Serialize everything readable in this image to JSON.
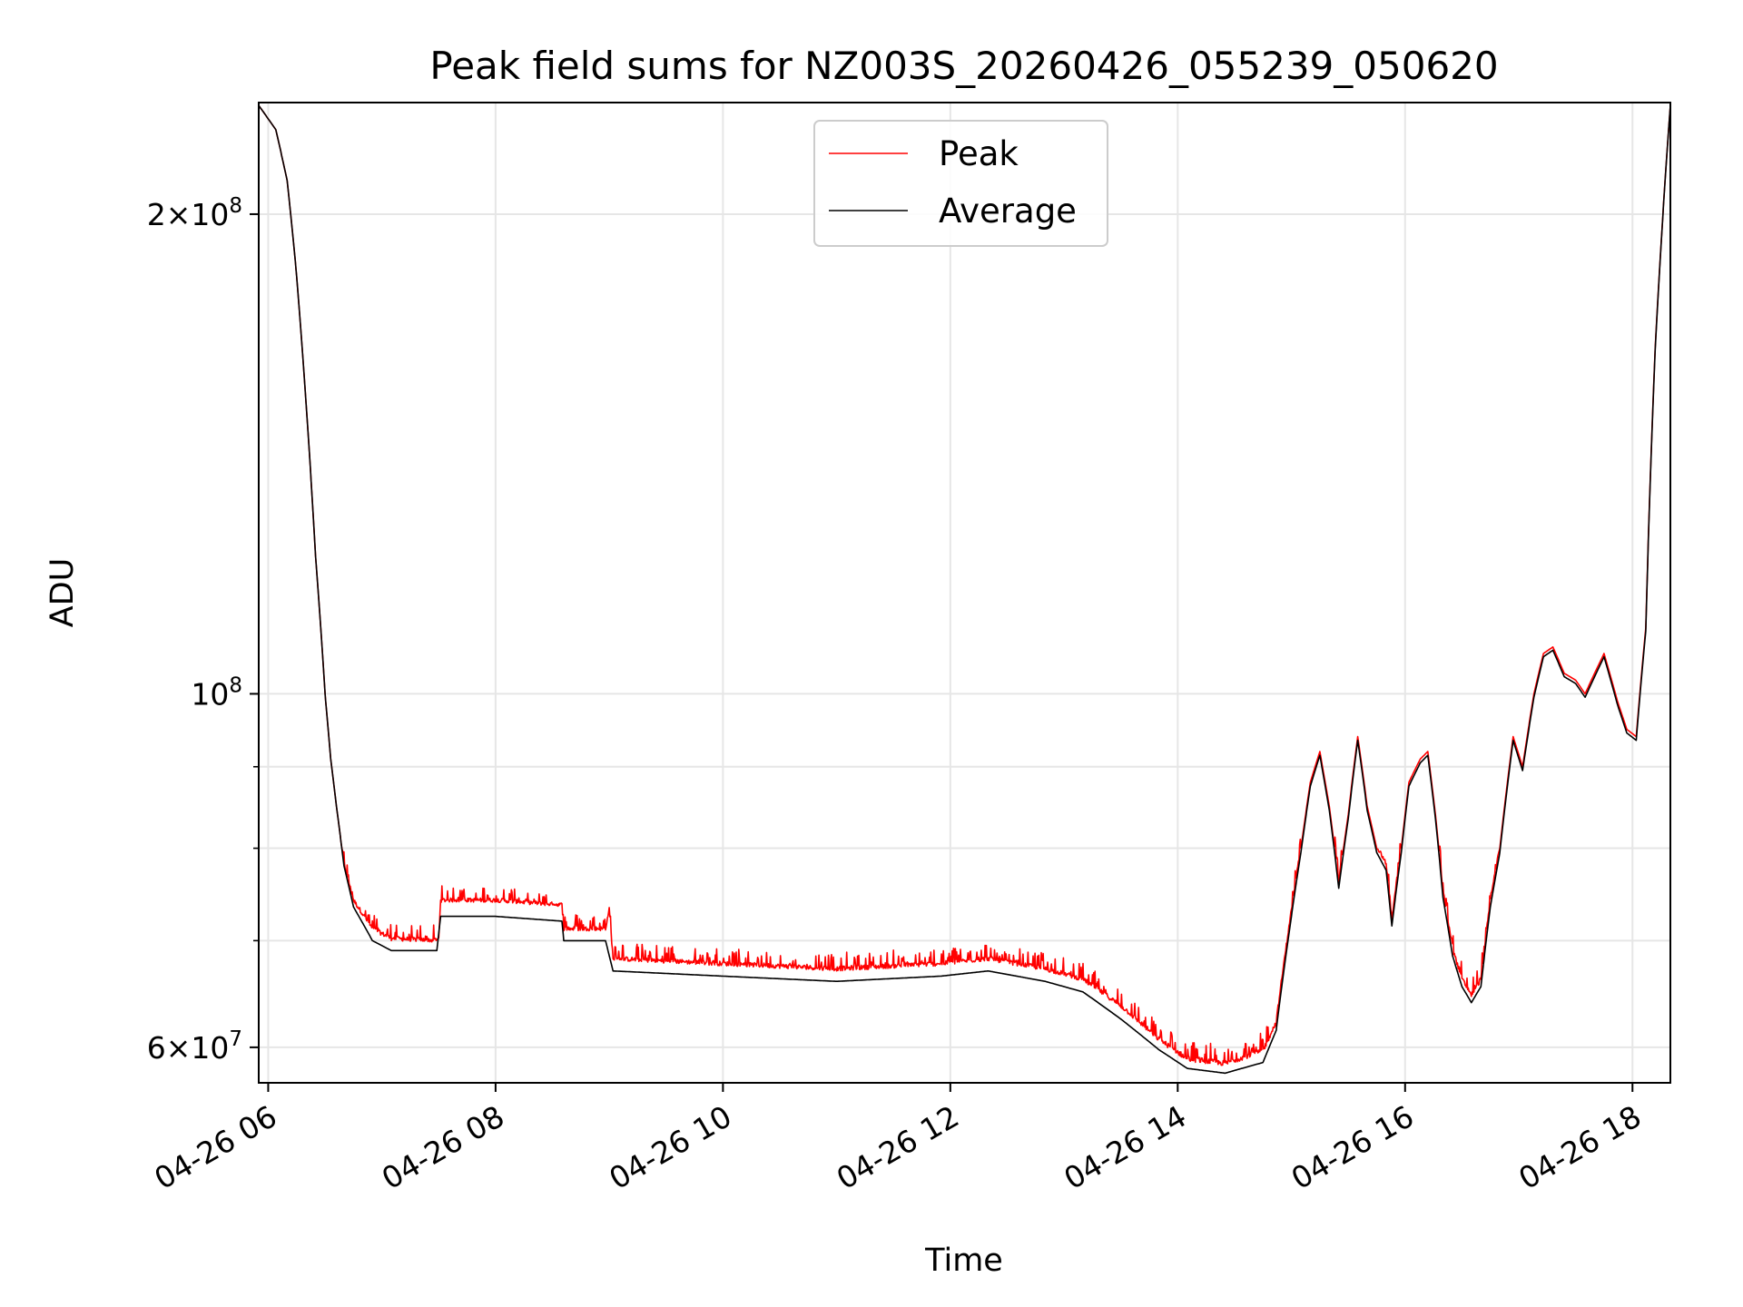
{
  "chart_data": {
    "type": "line",
    "title": "Peak field sums for NZ003S_20260426_055239_050620",
    "xlabel": "Time",
    "ylabel": "ADU",
    "yscale": "log",
    "ylim": [
      57000000,
      235000000
    ],
    "xlim": [
      "2026-04-26 05:55",
      "2026-04-26 18:20"
    ],
    "grid": true,
    "legend_position": "top-center",
    "x_ticks": [
      {
        "t": "2026-04-26 06:00",
        "label": "04-26 06"
      },
      {
        "t": "2026-04-26 08:00",
        "label": "04-26 08"
      },
      {
        "t": "2026-04-26 10:00",
        "label": "04-26 10"
      },
      {
        "t": "2026-04-26 12:00",
        "label": "04-26 12"
      },
      {
        "t": "2026-04-26 14:00",
        "label": "04-26 14"
      },
      {
        "t": "2026-04-26 16:00",
        "label": "04-26 16"
      },
      {
        "t": "2026-04-26 18:00",
        "label": "04-26 18"
      }
    ],
    "y_ticks": [
      {
        "v": 60000000,
        "base": "6",
        "exp": "7"
      },
      {
        "v": 100000000,
        "base": "",
        "exp": "8"
      },
      {
        "v": 200000000,
        "base": "2",
        "exp": "8"
      }
    ],
    "y_minor_ticks": [
      70000000,
      80000000,
      90000000
    ],
    "series": [
      {
        "name": "Peak",
        "color": "#ff0000",
        "noise": 1800000,
        "points": [
          [
            "2026-04-26 05:55",
            234000000
          ],
          [
            "2026-04-26 06:04",
            226000000
          ],
          [
            "2026-04-26 06:10",
            210000000
          ],
          [
            "2026-04-26 06:15",
            183000000
          ],
          [
            "2026-04-26 06:20",
            152000000
          ],
          [
            "2026-04-26 06:25",
            122000000
          ],
          [
            "2026-04-26 06:30",
            100000000
          ],
          [
            "2026-04-26 06:33",
            91000000
          ],
          [
            "2026-04-26 06:36",
            85000000
          ],
          [
            "2026-04-26 06:40",
            78000000
          ],
          [
            "2026-04-26 06:45",
            74000000
          ],
          [
            "2026-04-26 06:55",
            71000000
          ],
          [
            "2026-04-26 07:05",
            70000000
          ],
          [
            "2026-04-26 07:30",
            70000000
          ],
          [
            "2026-04-26 07:29",
            69800000
          ],
          [
            "2026-04-26 07:31",
            74000000
          ],
          [
            "2026-04-26 08:00",
            74000000
          ],
          [
            "2026-04-26 08:35",
            73500000
          ],
          [
            "2026-04-26 08:36",
            71000000
          ],
          [
            "2026-04-26 08:58",
            71000000
          ],
          [
            "2026-04-26 09:00",
            73000000
          ],
          [
            "2026-04-26 09:02",
            68000000
          ],
          [
            "2026-04-26 10:00",
            67500000
          ],
          [
            "2026-04-26 11:00",
            67000000
          ],
          [
            "2026-04-26 11:55",
            67500000
          ],
          [
            "2026-04-26 12:20",
            68000000
          ],
          [
            "2026-04-26 12:50",
            67000000
          ],
          [
            "2026-04-26 13:10",
            66000000
          ],
          [
            "2026-04-26 13:30",
            63500000
          ],
          [
            "2026-04-26 13:50",
            60500000
          ],
          [
            "2026-04-26 14:05",
            58800000
          ],
          [
            "2026-04-26 14:25",
            58400000
          ],
          [
            "2026-04-26 14:45",
            59500000
          ],
          [
            "2026-04-26 14:52",
            62000000
          ],
          [
            "2026-04-26 15:00",
            73000000
          ],
          [
            "2026-04-26 15:05",
            80000000
          ],
          [
            "2026-04-26 15:10",
            88000000
          ],
          [
            "2026-04-26 15:15",
            92000000
          ],
          [
            "2026-04-26 15:20",
            85000000
          ],
          [
            "2026-04-26 15:25",
            76000000
          ],
          [
            "2026-04-26 15:30",
            84000000
          ],
          [
            "2026-04-26 15:35",
            94000000
          ],
          [
            "2026-04-26 15:40",
            85000000
          ],
          [
            "2026-04-26 15:45",
            80000000
          ],
          [
            "2026-04-26 15:50",
            78000000
          ],
          [
            "2026-04-26 15:53",
            72000000
          ],
          [
            "2026-04-26 15:58",
            80000000
          ],
          [
            "2026-04-26 16:02",
            88000000
          ],
          [
            "2026-04-26 16:08",
            91000000
          ],
          [
            "2026-04-26 16:12",
            92000000
          ],
          [
            "2026-04-26 16:16",
            84000000
          ],
          [
            "2026-04-26 16:20",
            75000000
          ],
          [
            "2026-04-26 16:25",
            69000000
          ],
          [
            "2026-04-26 16:30",
            66000000
          ],
          [
            "2026-04-26 16:35",
            64500000
          ],
          [
            "2026-04-26 16:40",
            66000000
          ],
          [
            "2026-04-26 16:45",
            74000000
          ],
          [
            "2026-04-26 16:50",
            80000000
          ],
          [
            "2026-04-26 16:57",
            94000000
          ],
          [
            "2026-04-26 17:02",
            90000000
          ],
          [
            "2026-04-26 17:08",
            100000000
          ],
          [
            "2026-04-26 17:13",
            106000000
          ],
          [
            "2026-04-26 17:18",
            107000000
          ],
          [
            "2026-04-26 17:24",
            103000000
          ],
          [
            "2026-04-26 17:30",
            102000000
          ],
          [
            "2026-04-26 17:35",
            100000000
          ],
          [
            "2026-04-26 17:40",
            103000000
          ],
          [
            "2026-04-26 17:45",
            106000000
          ],
          [
            "2026-04-26 17:52",
            99000000
          ],
          [
            "2026-04-26 17:57",
            95000000
          ],
          [
            "2026-04-26 18:02",
            94000000
          ],
          [
            "2026-04-26 18:07",
            110000000
          ],
          [
            "2026-04-26 18:12",
            165000000
          ],
          [
            "2026-04-26 18:20",
            234000000
          ]
        ]
      },
      {
        "name": "Average",
        "color": "#000000",
        "noise": 0,
        "points": [
          [
            "2026-04-26 05:55",
            234000000
          ],
          [
            "2026-04-26 06:04",
            226000000
          ],
          [
            "2026-04-26 06:10",
            210000000
          ],
          [
            "2026-04-26 06:15",
            183000000
          ],
          [
            "2026-04-26 06:20",
            152000000
          ],
          [
            "2026-04-26 06:25",
            122000000
          ],
          [
            "2026-04-26 06:30",
            100000000
          ],
          [
            "2026-04-26 06:33",
            91000000
          ],
          [
            "2026-04-26 06:36",
            85000000
          ],
          [
            "2026-04-26 06:40",
            78000000
          ],
          [
            "2026-04-26 06:45",
            73500000
          ],
          [
            "2026-04-26 06:55",
            70000000
          ],
          [
            "2026-04-26 07:05",
            69000000
          ],
          [
            "2026-04-26 07:29",
            69000000
          ],
          [
            "2026-04-26 07:31",
            72500000
          ],
          [
            "2026-04-26 08:00",
            72500000
          ],
          [
            "2026-04-26 08:35",
            72000000
          ],
          [
            "2026-04-26 08:36",
            70000000
          ],
          [
            "2026-04-26 08:58",
            70000000
          ],
          [
            "2026-04-26 09:02",
            67000000
          ],
          [
            "2026-04-26 10:00",
            66500000
          ],
          [
            "2026-04-26 11:00",
            66000000
          ],
          [
            "2026-04-26 11:55",
            66500000
          ],
          [
            "2026-04-26 12:20",
            67000000
          ],
          [
            "2026-04-26 12:50",
            66000000
          ],
          [
            "2026-04-26 13:10",
            65000000
          ],
          [
            "2026-04-26 13:30",
            62500000
          ],
          [
            "2026-04-26 13:50",
            59800000
          ],
          [
            "2026-04-26 14:05",
            58200000
          ],
          [
            "2026-04-26 14:25",
            57800000
          ],
          [
            "2026-04-26 14:45",
            58700000
          ],
          [
            "2026-04-26 14:52",
            61500000
          ],
          [
            "2026-04-26 15:00",
            72500000
          ],
          [
            "2026-04-26 15:05",
            79500000
          ],
          [
            "2026-04-26 15:10",
            87500000
          ],
          [
            "2026-04-26 15:15",
            91500000
          ],
          [
            "2026-04-26 15:20",
            84500000
          ],
          [
            "2026-04-26 15:25",
            75500000
          ],
          [
            "2026-04-26 15:30",
            83500000
          ],
          [
            "2026-04-26 15:35",
            93500000
          ],
          [
            "2026-04-26 15:40",
            84500000
          ],
          [
            "2026-04-26 15:45",
            79500000
          ],
          [
            "2026-04-26 15:50",
            77500000
          ],
          [
            "2026-04-26 15:53",
            71500000
          ],
          [
            "2026-04-26 15:58",
            79500000
          ],
          [
            "2026-04-26 16:02",
            87500000
          ],
          [
            "2026-04-26 16:08",
            90500000
          ],
          [
            "2026-04-26 16:12",
            91500000
          ],
          [
            "2026-04-26 16:16",
            83500000
          ],
          [
            "2026-04-26 16:20",
            74500000
          ],
          [
            "2026-04-26 16:25",
            68500000
          ],
          [
            "2026-04-26 16:30",
            65500000
          ],
          [
            "2026-04-26 16:35",
            64000000
          ],
          [
            "2026-04-26 16:40",
            65500000
          ],
          [
            "2026-04-26 16:45",
            73500000
          ],
          [
            "2026-04-26 16:50",
            79500000
          ],
          [
            "2026-04-26 16:57",
            93500000
          ],
          [
            "2026-04-26 17:02",
            89500000
          ],
          [
            "2026-04-26 17:08",
            99500000
          ],
          [
            "2026-04-26 17:13",
            105500000
          ],
          [
            "2026-04-26 17:18",
            106500000
          ],
          [
            "2026-04-26 17:24",
            102500000
          ],
          [
            "2026-04-26 17:30",
            101500000
          ],
          [
            "2026-04-26 17:35",
            99500000
          ],
          [
            "2026-04-26 17:40",
            102500000
          ],
          [
            "2026-04-26 17:45",
            105500000
          ],
          [
            "2026-04-26 17:52",
            98500000
          ],
          [
            "2026-04-26 17:57",
            94500000
          ],
          [
            "2026-04-26 18:02",
            93500000
          ],
          [
            "2026-04-26 18:07",
            109500000
          ],
          [
            "2026-04-26 18:12",
            164500000
          ],
          [
            "2026-04-26 18:20",
            234000000
          ]
        ]
      }
    ],
    "annotations": []
  }
}
